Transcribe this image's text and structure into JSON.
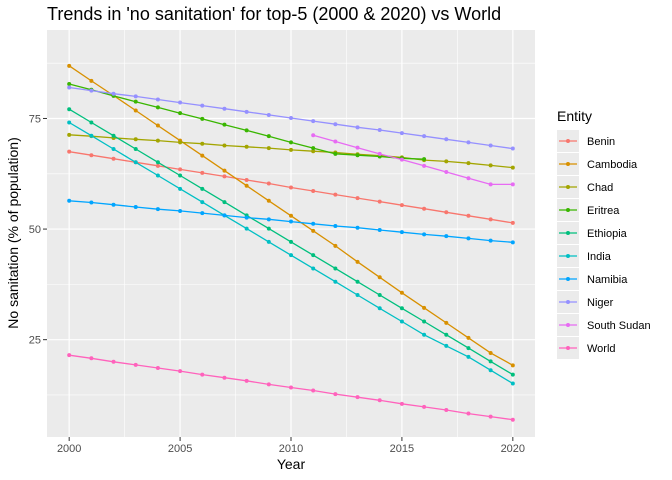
{
  "chart_data": {
    "type": "line",
    "title": "Trends in 'no sanitation' for top-5 (2000 & 2020) vs World",
    "xlabel": "Year",
    "ylabel": "No sanitation (% of population)",
    "xlim": [
      1999,
      2021
    ],
    "ylim": [
      3,
      95
    ],
    "x_ticks": [
      2000,
      2005,
      2010,
      2015,
      2020
    ],
    "y_ticks": [
      25,
      50,
      75
    ],
    "grid": true,
    "legend": {
      "title": "Entity",
      "position": "right"
    },
    "series": [
      {
        "name": "Benin",
        "color": "#F8766D",
        "x": [
          2000,
          2001,
          2002,
          2003,
          2004,
          2005,
          2006,
          2007,
          2008,
          2009,
          2010,
          2011,
          2012,
          2013,
          2014,
          2015,
          2016,
          2017,
          2018,
          2019,
          2020
        ],
        "values": [
          67.5,
          66.7,
          65.9,
          65.1,
          64.3,
          63.5,
          62.7,
          61.9,
          61.1,
          60.3,
          59.4,
          58.6,
          57.8,
          57.0,
          56.2,
          55.4,
          54.6,
          53.8,
          53.0,
          52.2,
          51.4
        ]
      },
      {
        "name": "Cambodia",
        "color": "#D89000",
        "x": [
          2000,
          2001,
          2002,
          2003,
          2004,
          2005,
          2006,
          2007,
          2008,
          2009,
          2010,
          2011,
          2012,
          2013,
          2014,
          2015,
          2016,
          2017,
          2018,
          2019,
          2020
        ],
        "values": [
          86.9,
          83.5,
          80.2,
          76.8,
          73.4,
          70.0,
          66.6,
          63.2,
          59.8,
          56.4,
          53.0,
          49.6,
          46.2,
          42.6,
          39.1,
          35.6,
          32.2,
          28.8,
          25.4,
          22.0,
          19.2
        ]
      },
      {
        "name": "Chad",
        "color": "#A3A500",
        "x": [
          2000,
          2001,
          2002,
          2003,
          2004,
          2005,
          2006,
          2007,
          2008,
          2009,
          2010,
          2011,
          2012,
          2013,
          2014,
          2015,
          2016,
          2017,
          2018,
          2019,
          2020
        ],
        "values": [
          71.3,
          71.0,
          70.6,
          70.3,
          70.0,
          69.6,
          69.3,
          68.9,
          68.6,
          68.3,
          67.9,
          67.6,
          67.3,
          66.9,
          66.6,
          66.2,
          65.6,
          65.3,
          64.9,
          64.4,
          63.9
        ]
      },
      {
        "name": "Eritrea",
        "color": "#39B600",
        "x": [
          2000,
          2001,
          2002,
          2003,
          2004,
          2005,
          2006,
          2007,
          2008,
          2009,
          2010,
          2011,
          2012,
          2013,
          2014,
          2015,
          2016
        ],
        "values": [
          82.8,
          81.5,
          80.1,
          78.8,
          77.5,
          76.2,
          74.9,
          73.6,
          72.3,
          71.0,
          69.6,
          68.3,
          67.0,
          66.7,
          66.4,
          66.0,
          65.8
        ]
      },
      {
        "name": "Ethiopia",
        "color": "#00BF7D",
        "x": [
          2000,
          2001,
          2002,
          2003,
          2004,
          2005,
          2006,
          2007,
          2008,
          2009,
          2010,
          2011,
          2012,
          2013,
          2014,
          2015,
          2016,
          2017,
          2018,
          2019,
          2020
        ],
        "values": [
          77.1,
          74.1,
          71.1,
          68.1,
          65.1,
          62.1,
          59.1,
          56.1,
          53.1,
          50.1,
          47.1,
          44.1,
          41.1,
          38.1,
          35.1,
          32.1,
          29.1,
          26.1,
          23.1,
          20.1,
          17.1
        ]
      },
      {
        "name": "India",
        "color": "#00BFC4",
        "x": [
          2000,
          2001,
          2002,
          2003,
          2004,
          2005,
          2006,
          2007,
          2008,
          2009,
          2010,
          2011,
          2012,
          2013,
          2014,
          2015,
          2016,
          2017,
          2018,
          2019,
          2020
        ],
        "values": [
          74.1,
          71.1,
          68.1,
          65.1,
          62.1,
          59.1,
          56.1,
          53.1,
          50.1,
          47.1,
          44.1,
          41.1,
          38.1,
          35.1,
          32.1,
          29.1,
          26.1,
          23.6,
          21.1,
          18.1,
          15.1
        ]
      },
      {
        "name": "Namibia",
        "color": "#00A5FF",
        "x": [
          2000,
          2001,
          2002,
          2003,
          2004,
          2005,
          2006,
          2007,
          2008,
          2009,
          2010,
          2011,
          2012,
          2013,
          2014,
          2015,
          2016,
          2017,
          2018,
          2019,
          2020
        ],
        "values": [
          56.4,
          56.0,
          55.5,
          55.0,
          54.5,
          54.1,
          53.6,
          53.1,
          52.6,
          52.2,
          51.7,
          51.2,
          50.7,
          50.3,
          49.8,
          49.3,
          48.8,
          48.4,
          47.9,
          47.4,
          47.0
        ]
      },
      {
        "name": "Niger",
        "color": "#9590FF",
        "x": [
          2000,
          2001,
          2002,
          2003,
          2004,
          2005,
          2006,
          2007,
          2008,
          2009,
          2010,
          2011,
          2012,
          2013,
          2014,
          2015,
          2016,
          2017,
          2018,
          2019,
          2020
        ],
        "values": [
          82.0,
          81.3,
          80.6,
          80.0,
          79.3,
          78.6,
          77.9,
          77.2,
          76.5,
          75.8,
          75.1,
          74.4,
          73.7,
          73.0,
          72.4,
          71.7,
          71.0,
          70.3,
          69.6,
          68.9,
          68.2
        ]
      },
      {
        "name": "South Sudan",
        "color": "#E76BF3",
        "x": [
          2011,
          2012,
          2013,
          2014,
          2015,
          2016,
          2017,
          2018,
          2019,
          2020
        ],
        "values": [
          71.2,
          69.8,
          68.4,
          67.0,
          65.7,
          64.3,
          62.9,
          61.5,
          60.1,
          60.1
        ]
      },
      {
        "name": "World",
        "color": "#FF62BC",
        "x": [
          2000,
          2001,
          2002,
          2003,
          2004,
          2005,
          2006,
          2007,
          2008,
          2009,
          2010,
          2011,
          2012,
          2013,
          2014,
          2015,
          2016,
          2017,
          2018,
          2019,
          2020
        ],
        "values": [
          21.5,
          20.8,
          20.0,
          19.3,
          18.6,
          17.9,
          17.1,
          16.4,
          15.7,
          14.9,
          14.2,
          13.5,
          12.7,
          12.0,
          11.3,
          10.5,
          9.8,
          9.1,
          8.3,
          7.6,
          6.9
        ]
      }
    ]
  }
}
